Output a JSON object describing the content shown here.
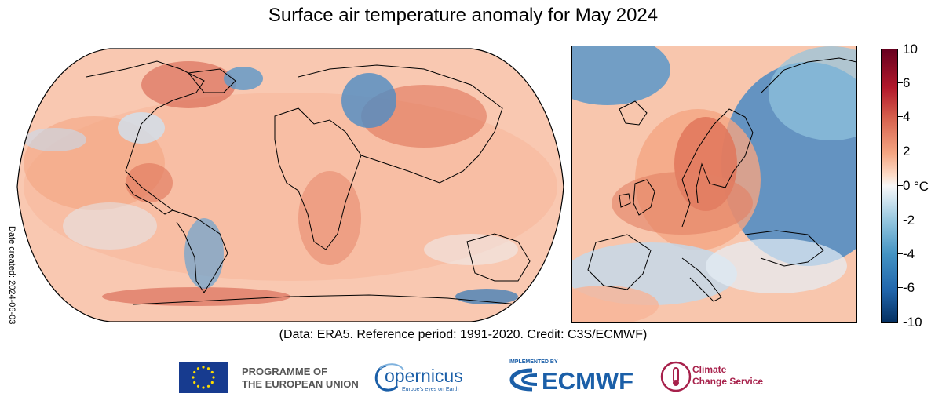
{
  "title": "Surface air temperature anomaly for May 2024",
  "date_created": "Date created: 2024-06-03",
  "credit": "(Data: ERA5.  Reference period: 1991-2020.  Credit: C3S/ECMWF)",
  "colorbar": {
    "unit": "°C",
    "ticks": [
      "10",
      "6",
      "4",
      "2",
      "0",
      "-2",
      "-4",
      "-6",
      "-10"
    ],
    "range": [
      -10,
      10
    ],
    "colors": {
      "max": "#67001f",
      "warm": "#d6604d",
      "neutral": "#f7f7f7",
      "cool": "#4393c3",
      "min": "#053061"
    }
  },
  "logos": {
    "eu": {
      "line1": "PROGRAMME OF",
      "line2": "THE EUROPEAN UNION"
    },
    "copernicus": {
      "name": "opernicus",
      "tagline": "Europe's eyes on Earth"
    },
    "ecmwf": {
      "implemented": "IMPLEMENTED BY",
      "name": "ECMWF"
    },
    "c3s": {
      "line1": "Climate",
      "line2": "Change Service"
    }
  }
}
